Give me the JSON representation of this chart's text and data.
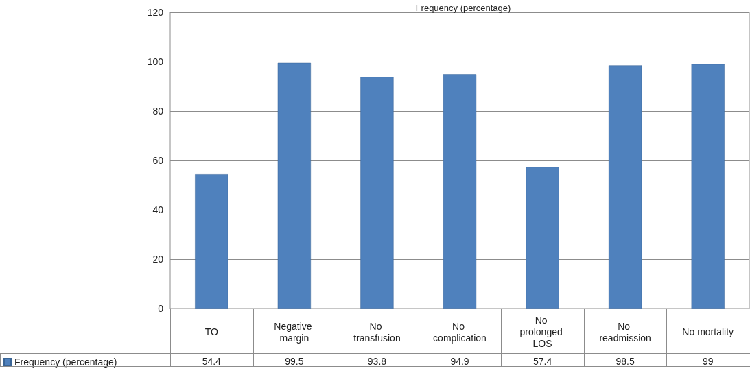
{
  "chart_data": {
    "type": "bar",
    "title": "Frequency (percentage)",
    "categories": [
      "TO",
      "Negative margin",
      "No transfusion",
      "No complication",
      "No prolonged LOS",
      "No readmission",
      "No mortality"
    ],
    "series": [
      {
        "name": "Frequency (percentage)",
        "color": "#4f81bd",
        "values": [
          54.4,
          99.5,
          93.8,
          94.9,
          57.4,
          98.5,
          99
        ]
      }
    ],
    "ylim": [
      0,
      120
    ],
    "yticks": [
      0,
      20,
      40,
      60,
      80,
      100,
      120
    ],
    "grid": "y",
    "legend": "bottom left",
    "data_labels": true
  }
}
